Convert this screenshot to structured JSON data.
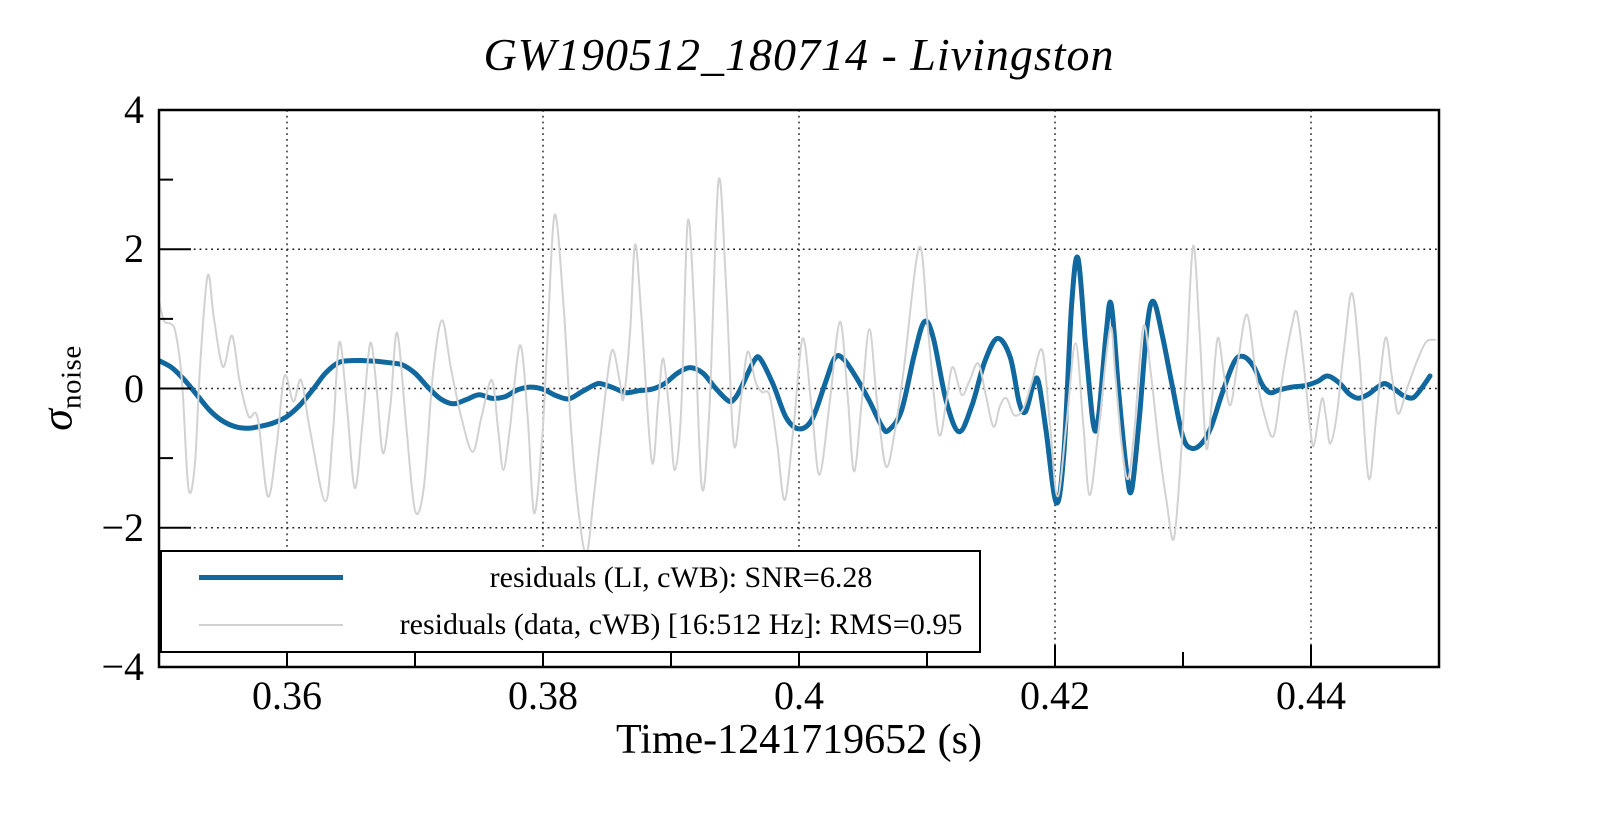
{
  "chart_data": {
    "type": "line",
    "title": "GW190512_180714 - Livingston",
    "xlabel": "Time-1241719652 (s)",
    "ylabel": "sigma_noise",
    "ylabel_symbol": "σ",
    "ylabel_subscript": "noise",
    "xlim": [
      0.35,
      0.45
    ],
    "ylim": [
      -4,
      4
    ],
    "xticks_major": [
      0.36,
      0.38,
      0.4,
      0.42,
      0.44
    ],
    "xtick_labels": [
      "0.36",
      "0.38",
      "0.4",
      "0.42",
      "0.44"
    ],
    "xticks_all": [
      0.36,
      0.37,
      0.38,
      0.39,
      0.4,
      0.41,
      0.42,
      0.43,
      0.44
    ],
    "yticks_labeled": [
      -4,
      -2,
      0,
      2,
      4
    ],
    "ytick_labels": [
      "−4",
      "−2",
      "0",
      "2",
      "4"
    ],
    "ygrid_lines": [
      -2,
      0,
      2
    ],
    "yticks_minor": [
      -3,
      -1,
      1,
      3
    ],
    "grid": {
      "style": "dotted",
      "color": "#1a1a1a"
    },
    "axis_color": "#000000",
    "legend": {
      "position": "lower-left",
      "entries": [
        {
          "label": "residuals (LI, cWB): SNR=6.28",
          "color": "#10689e",
          "line_width": 5
        },
        {
          "label": "residuals (data, cWB) [16:512 Hz]: RMS=0.95",
          "color": "#d2d2d2",
          "line_width": 2
        }
      ]
    },
    "series": [
      {
        "name": "residuals (LI, cWB): SNR=6.28",
        "color": "#10689e",
        "width": 5,
        "points": [
          [
            0.35,
            0.4
          ],
          [
            0.351,
            0.3
          ],
          [
            0.352,
            0.12
          ],
          [
            0.353,
            -0.1
          ],
          [
            0.354,
            -0.32
          ],
          [
            0.355,
            -0.47
          ],
          [
            0.356,
            -0.55
          ],
          [
            0.357,
            -0.57
          ],
          [
            0.358,
            -0.54
          ],
          [
            0.359,
            -0.49
          ],
          [
            0.36,
            -0.4
          ],
          [
            0.361,
            -0.24
          ],
          [
            0.362,
            -0.02
          ],
          [
            0.363,
            0.22
          ],
          [
            0.364,
            0.37
          ],
          [
            0.365,
            0.4
          ],
          [
            0.366,
            0.4
          ],
          [
            0.367,
            0.39
          ],
          [
            0.368,
            0.37
          ],
          [
            0.369,
            0.34
          ],
          [
            0.37,
            0.22
          ],
          [
            0.371,
            0.02
          ],
          [
            0.372,
            -0.15
          ],
          [
            0.373,
            -0.22
          ],
          [
            0.374,
            -0.16
          ],
          [
            0.375,
            -0.09
          ],
          [
            0.376,
            -0.14
          ],
          [
            0.377,
            -0.12
          ],
          [
            0.378,
            -0.02
          ],
          [
            0.379,
            0.02
          ],
          [
            0.38,
            -0.01
          ],
          [
            0.381,
            -0.1
          ],
          [
            0.382,
            -0.15
          ],
          [
            0.383,
            -0.05
          ],
          [
            0.384,
            0.05
          ],
          [
            0.3845,
            0.07
          ],
          [
            0.3855,
            0.01
          ],
          [
            0.3865,
            -0.06
          ],
          [
            0.3875,
            -0.03
          ],
          [
            0.3885,
            -0.01
          ],
          [
            0.3895,
            0.07
          ],
          [
            0.3905,
            0.22
          ],
          [
            0.3915,
            0.3
          ],
          [
            0.3925,
            0.22
          ],
          [
            0.3935,
            0.0
          ],
          [
            0.3945,
            -0.18
          ],
          [
            0.395,
            -0.14
          ],
          [
            0.3955,
            0.02
          ],
          [
            0.3965,
            0.4
          ],
          [
            0.397,
            0.42
          ],
          [
            0.398,
            0.05
          ],
          [
            0.399,
            -0.42
          ],
          [
            0.4,
            -0.58
          ],
          [
            0.401,
            -0.45
          ],
          [
            0.402,
            0.05
          ],
          [
            0.4028,
            0.44
          ],
          [
            0.4035,
            0.42
          ],
          [
            0.4045,
            0.15
          ],
          [
            0.4055,
            -0.18
          ],
          [
            0.4065,
            -0.55
          ],
          [
            0.407,
            -0.6
          ],
          [
            0.408,
            -0.32
          ],
          [
            0.409,
            0.48
          ],
          [
            0.4098,
            0.96
          ],
          [
            0.4105,
            0.72
          ],
          [
            0.4115,
            -0.18
          ],
          [
            0.4125,
            -0.62
          ],
          [
            0.4135,
            -0.25
          ],
          [
            0.4145,
            0.38
          ],
          [
            0.4155,
            0.72
          ],
          [
            0.4165,
            0.45
          ],
          [
            0.4172,
            -0.2
          ],
          [
            0.4177,
            -0.33
          ],
          [
            0.4183,
            0.05
          ],
          [
            0.4187,
            0.1
          ],
          [
            0.4193,
            -0.6
          ],
          [
            0.4201,
            -1.64
          ],
          [
            0.4207,
            -0.9
          ],
          [
            0.4213,
            1.2
          ],
          [
            0.4218,
            1.87
          ],
          [
            0.4224,
            0.6
          ],
          [
            0.423,
            -0.52
          ],
          [
            0.4234,
            -0.4
          ],
          [
            0.424,
            0.8
          ],
          [
            0.4244,
            1.2
          ],
          [
            0.425,
            -0.1
          ],
          [
            0.4256,
            -1.2
          ],
          [
            0.426,
            -1.45
          ],
          [
            0.4266,
            -0.4
          ],
          [
            0.4272,
            0.9
          ],
          [
            0.4277,
            1.25
          ],
          [
            0.4284,
            0.75
          ],
          [
            0.4292,
            0.0
          ],
          [
            0.43,
            -0.7
          ],
          [
            0.4307,
            -0.86
          ],
          [
            0.4315,
            -0.78
          ],
          [
            0.4322,
            -0.55
          ],
          [
            0.433,
            -0.1
          ],
          [
            0.434,
            0.38
          ],
          [
            0.4347,
            0.46
          ],
          [
            0.4355,
            0.32
          ],
          [
            0.4362,
            0.05
          ],
          [
            0.4368,
            -0.06
          ],
          [
            0.4375,
            -0.02
          ],
          [
            0.4385,
            0.02
          ],
          [
            0.4395,
            0.04
          ],
          [
            0.4405,
            0.1
          ],
          [
            0.4413,
            0.18
          ],
          [
            0.4422,
            0.08
          ],
          [
            0.443,
            -0.08
          ],
          [
            0.4437,
            -0.14
          ],
          [
            0.4445,
            -0.08
          ],
          [
            0.4452,
            0.02
          ],
          [
            0.4458,
            0.07
          ],
          [
            0.4466,
            -0.02
          ],
          [
            0.4473,
            -0.11
          ],
          [
            0.448,
            -0.13
          ],
          [
            0.4487,
            0.02
          ],
          [
            0.4493,
            0.18
          ]
        ]
      },
      {
        "name": "residuals (data, cWB) [16:512 Hz]: RMS=0.95",
        "color": "#d2d2d2",
        "width": 2,
        "points": [
          [
            0.35,
            1.25
          ],
          [
            0.3504,
            0.97
          ],
          [
            0.3509,
            0.93
          ],
          [
            0.3513,
            0.8
          ],
          [
            0.3518,
            0.1
          ],
          [
            0.3523,
            -1.43
          ],
          [
            0.3528,
            -1.1
          ],
          [
            0.3532,
            0.3
          ],
          [
            0.3538,
            1.62
          ],
          [
            0.3543,
            1.0
          ],
          [
            0.355,
            0.31
          ],
          [
            0.3557,
            0.76
          ],
          [
            0.3563,
            0.1
          ],
          [
            0.357,
            -0.4
          ],
          [
            0.3577,
            -0.42
          ],
          [
            0.3585,
            -1.55
          ],
          [
            0.3592,
            -0.8
          ],
          [
            0.3598,
            0.18
          ],
          [
            0.3605,
            -0.19
          ],
          [
            0.3611,
            0.12
          ],
          [
            0.3618,
            -0.6
          ],
          [
            0.363,
            -1.62
          ],
          [
            0.3636,
            -0.6
          ],
          [
            0.3641,
            0.67
          ],
          [
            0.3647,
            -0.3
          ],
          [
            0.3653,
            -1.43
          ],
          [
            0.3659,
            -0.5
          ],
          [
            0.3665,
            0.65
          ],
          [
            0.367,
            0.0
          ],
          [
            0.3675,
            -0.93
          ],
          [
            0.3681,
            -0.2
          ],
          [
            0.3686,
            0.8
          ],
          [
            0.3693,
            -0.5
          ],
          [
            0.37,
            -1.75
          ],
          [
            0.3707,
            -1.4
          ],
          [
            0.3714,
            0.2
          ],
          [
            0.3721,
            0.98
          ],
          [
            0.3728,
            0.3
          ],
          [
            0.3736,
            -0.4
          ],
          [
            0.3745,
            -0.91
          ],
          [
            0.3752,
            -0.4
          ],
          [
            0.376,
            0.12
          ],
          [
            0.3765,
            -0.6
          ],
          [
            0.3769,
            -1.17
          ],
          [
            0.3774,
            -0.6
          ],
          [
            0.3782,
            0.62
          ],
          [
            0.3788,
            -0.4
          ],
          [
            0.3793,
            -1.79
          ],
          [
            0.3799,
            -0.8
          ],
          [
            0.3803,
            0.5
          ],
          [
            0.3809,
            2.49
          ],
          [
            0.3816,
            1.2
          ],
          [
            0.3822,
            -0.6
          ],
          [
            0.3828,
            -1.8
          ],
          [
            0.3834,
            -2.37
          ],
          [
            0.384,
            -1.5
          ],
          [
            0.3848,
            -0.2
          ],
          [
            0.3854,
            0.55
          ],
          [
            0.386,
            0.1
          ],
          [
            0.3863,
            -0.14
          ],
          [
            0.3868,
            0.8
          ],
          [
            0.3872,
            2.07
          ],
          [
            0.3877,
            1.0
          ],
          [
            0.3885,
            -1.05
          ],
          [
            0.389,
            -0.2
          ],
          [
            0.3894,
            0.43
          ],
          [
            0.3899,
            -0.4
          ],
          [
            0.3903,
            -1.17
          ],
          [
            0.3908,
            -0.3
          ],
          [
            0.3913,
            2.38
          ],
          [
            0.3918,
            1.2
          ],
          [
            0.3924,
            -1.41
          ],
          [
            0.393,
            -0.3
          ],
          [
            0.3937,
            2.97
          ],
          [
            0.3943,
            1.5
          ],
          [
            0.3949,
            -0.79
          ],
          [
            0.3955,
            -0.1
          ],
          [
            0.396,
            0.53
          ],
          [
            0.3966,
            0.1
          ],
          [
            0.3971,
            -0.05
          ],
          [
            0.3977,
            -0.1
          ],
          [
            0.3983,
            -0.8
          ],
          [
            0.3989,
            -1.6
          ],
          [
            0.3996,
            -0.5
          ],
          [
            0.4003,
            0.72
          ],
          [
            0.401,
            -0.3
          ],
          [
            0.4016,
            -1.24
          ],
          [
            0.4024,
            -0.2
          ],
          [
            0.4032,
            0.96
          ],
          [
            0.4038,
            -0.1
          ],
          [
            0.4043,
            -1.19
          ],
          [
            0.4049,
            -0.2
          ],
          [
            0.4055,
            0.85
          ],
          [
            0.4061,
            -0.2
          ],
          [
            0.4068,
            -1.12
          ],
          [
            0.4075,
            -0.6
          ],
          [
            0.4082,
            0.3
          ],
          [
            0.4094,
            2.03
          ],
          [
            0.4101,
            0.8
          ],
          [
            0.4109,
            -0.64
          ],
          [
            0.4115,
            -0.2
          ],
          [
            0.412,
            0.31
          ],
          [
            0.4127,
            -0.09
          ],
          [
            0.4133,
            0.1
          ],
          [
            0.414,
            0.36
          ],
          [
            0.4146,
            -0.1
          ],
          [
            0.4152,
            -0.55
          ],
          [
            0.4157,
            -0.25
          ],
          [
            0.4162,
            -0.14
          ],
          [
            0.4168,
            -0.38
          ],
          [
            0.4175,
            -0.3
          ],
          [
            0.4182,
            0.1
          ],
          [
            0.419,
            0.55
          ],
          [
            0.4196,
            -0.5
          ],
          [
            0.4202,
            -1.55
          ],
          [
            0.4209,
            -0.5
          ],
          [
            0.4216,
            0.65
          ],
          [
            0.4222,
            -0.5
          ],
          [
            0.4227,
            -1.53
          ],
          [
            0.4234,
            -0.6
          ],
          [
            0.4243,
            0.86
          ],
          [
            0.4247,
            0.2
          ],
          [
            0.4252,
            -0.8
          ],
          [
            0.4257,
            -1.3
          ],
          [
            0.4262,
            -0.6
          ],
          [
            0.4269,
            0.89
          ],
          [
            0.4275,
            0.2
          ],
          [
            0.4281,
            -0.8
          ],
          [
            0.4287,
            -1.6
          ],
          [
            0.4293,
            -2.15
          ],
          [
            0.4299,
            -0.8
          ],
          [
            0.4303,
            0.5
          ],
          [
            0.4308,
            2.05
          ],
          [
            0.4313,
            0.8
          ],
          [
            0.4318,
            -0.83
          ],
          [
            0.4322,
            -0.3
          ],
          [
            0.4327,
            0.72
          ],
          [
            0.4332,
            0.2
          ],
          [
            0.4337,
            -0.24
          ],
          [
            0.4343,
            0.4
          ],
          [
            0.435,
            1.06
          ],
          [
            0.4357,
            0.2
          ],
          [
            0.4364,
            -0.4
          ],
          [
            0.4371,
            -0.67
          ],
          [
            0.4378,
            0.2
          ],
          [
            0.4385,
            0.9
          ],
          [
            0.4389,
            1.09
          ],
          [
            0.4394,
            0.4
          ],
          [
            0.4399,
            -0.5
          ],
          [
            0.4402,
            -0.83
          ],
          [
            0.4406,
            -0.4
          ],
          [
            0.4409,
            -0.14
          ],
          [
            0.4412,
            -0.45
          ],
          [
            0.4415,
            -0.79
          ],
          [
            0.442,
            -0.4
          ],
          [
            0.4426,
            0.6
          ],
          [
            0.4432,
            1.37
          ],
          [
            0.4438,
            0.4
          ],
          [
            0.4445,
            -1.29
          ],
          [
            0.4451,
            -0.4
          ],
          [
            0.4458,
            0.72
          ],
          [
            0.4463,
            0.2
          ],
          [
            0.4468,
            -0.36
          ],
          [
            0.4475,
            0.0
          ],
          [
            0.4483,
            0.4
          ],
          [
            0.449,
            0.67
          ],
          [
            0.4497,
            0.7
          ]
        ]
      }
    ]
  }
}
